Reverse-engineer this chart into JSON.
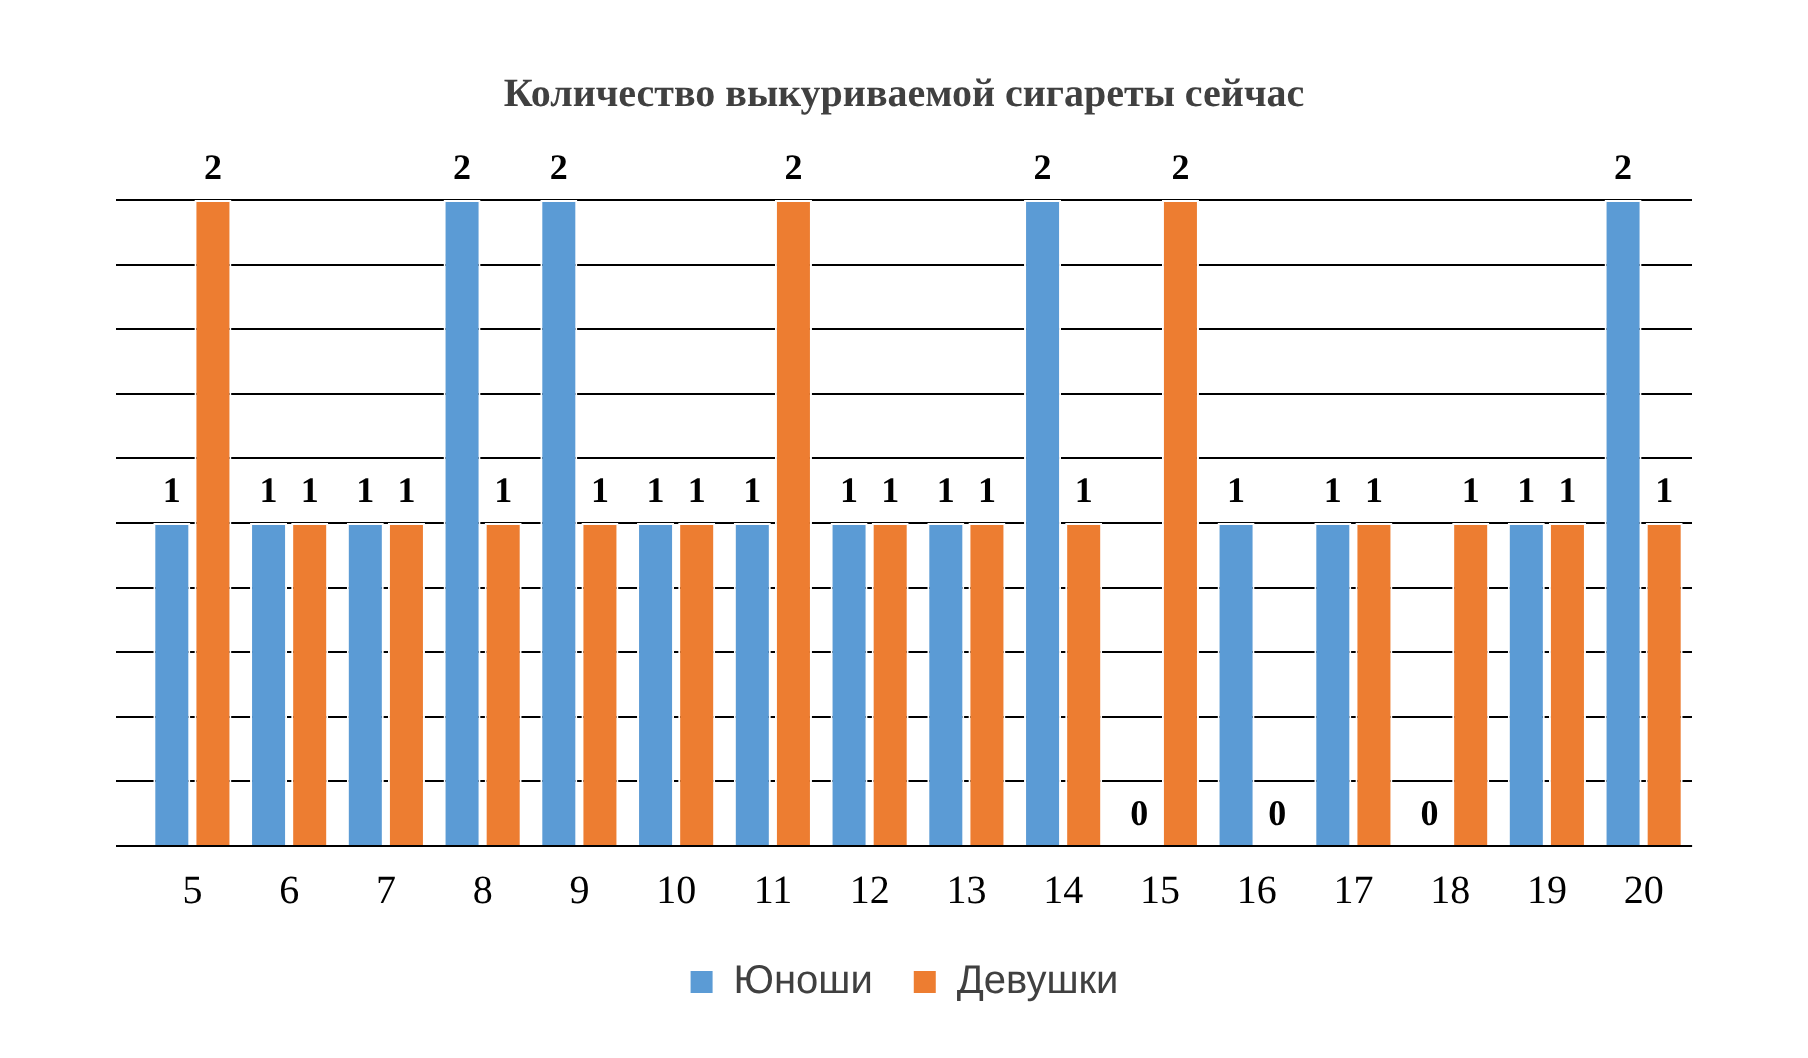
{
  "chart_data": {
    "type": "bar",
    "title": "Количество выкуриваемой сигареты сейчас",
    "categories": [
      "5",
      "6",
      "7",
      "8",
      "9",
      "10",
      "11",
      "12",
      "13",
      "14",
      "15",
      "16",
      "17",
      "18",
      "19",
      "20"
    ],
    "series": [
      {
        "name": "Юноши",
        "color": "#5b9bd5",
        "values": [
          1,
          1,
          1,
          2,
          2,
          1,
          1,
          1,
          1,
          2,
          0,
          1,
          1,
          0,
          1,
          2
        ]
      },
      {
        "name": "Девушки",
        "color": "#ed7d31",
        "values": [
          2,
          1,
          1,
          1,
          1,
          1,
          2,
          1,
          1,
          1,
          2,
          0,
          1,
          1,
          1,
          1
        ]
      }
    ],
    "ylim": [
      0,
      2
    ],
    "yticks": [
      {
        "value": 0,
        "label": null
      },
      {
        "value": 0.2,
        "label": null
      },
      {
        "value": 0.4,
        "label": null
      },
      {
        "value": 0.6,
        "label": null
      },
      {
        "value": 0.8,
        "label": null
      },
      {
        "value": 1,
        "label": null
      },
      {
        "value": 1.2,
        "label": null
      },
      {
        "value": 1.4,
        "label": null
      },
      {
        "value": 1.6,
        "label": null
      },
      {
        "value": 1.8,
        "label": null
      },
      {
        "value": 2,
        "label": null
      }
    ],
    "tick_labels": "x",
    "grid": "y",
    "legend": "bottom",
    "data_labels": true
  }
}
